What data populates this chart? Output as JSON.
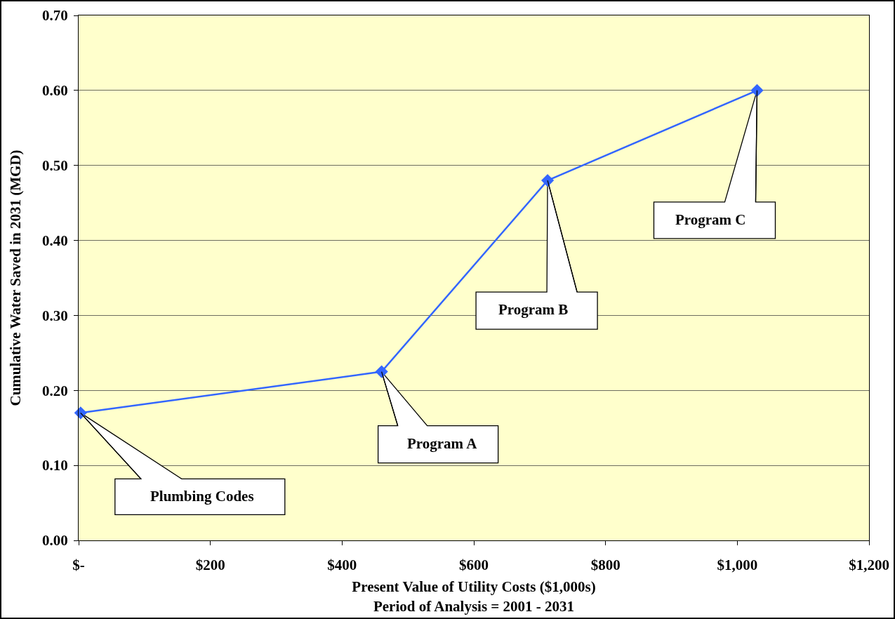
{
  "chart_data": {
    "type": "line",
    "xlabel": "Present Value of Utility Costs ($1,000s)\nPeriod of Analysis = 2001 - 2031",
    "ylabel": "Cumulative Water Saved in 2031 (MGD)",
    "x": [
      3,
      460,
      712,
      1030
    ],
    "values": [
      0.17,
      0.225,
      0.48,
      0.6
    ],
    "color": "#3366ff",
    "marker": "diamond",
    "line_style": "solid",
    "xlim": [
      0,
      1200
    ],
    "xticks": [
      {
        "value": 0,
        "label": "$-"
      },
      {
        "value": 200,
        "label": "$200"
      },
      {
        "value": 400,
        "label": "$400"
      },
      {
        "value": 600,
        "label": "$600"
      },
      {
        "value": 800,
        "label": "$800"
      },
      {
        "value": 1000,
        "label": "$1,000"
      },
      {
        "value": 1200,
        "label": "$1,200"
      }
    ],
    "ylim": [
      0,
      0.7
    ],
    "yticks": [
      {
        "value": 0,
        "label": "0.00"
      },
      {
        "value": 0.1,
        "label": "0.10"
      },
      {
        "value": 0.2,
        "label": "0.20"
      },
      {
        "value": 0.3,
        "label": "0.30"
      },
      {
        "value": 0.4,
        "label": "0.40"
      },
      {
        "value": 0.5,
        "label": "0.50"
      },
      {
        "value": 0.6,
        "label": "0.60"
      },
      {
        "value": 0.7,
        "label": "0.70"
      }
    ],
    "grid": "y",
    "annotations": [
      {
        "text": "Plumbing Codes",
        "x": 3,
        "y": 0.17
      },
      {
        "text": "Program A",
        "x": 460,
        "y": 0.225
      },
      {
        "text": "Program B",
        "x": 712,
        "y": 0.48
      },
      {
        "text": "Program C",
        "x": 1030,
        "y": 0.6
      }
    ]
  }
}
